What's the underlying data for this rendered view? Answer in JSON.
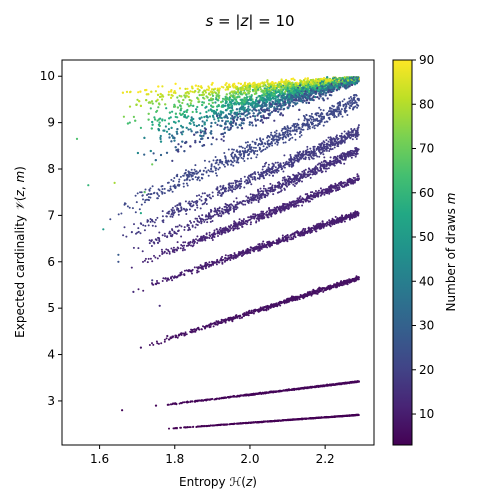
{
  "chart_data": {
    "type": "scatter",
    "title": "s = |z| = 10",
    "title_math": "$s = |z| =$ 10",
    "xlabel": "Entropy ℋ(z)",
    "ylabel": "Expected cardinality 𝒱(z, m)",
    "xlim": [
      1.5,
      2.33
    ],
    "ylim": [
      2.05,
      10.35
    ],
    "x_ticks": [
      1.6,
      1.8,
      2.0,
      2.2
    ],
    "y_ticks": [
      3,
      4,
      5,
      6,
      7,
      8,
      9,
      10
    ],
    "x_tick_labels": [
      "1.6",
      "1.8",
      "2.0",
      "2.2"
    ],
    "y_tick_labels": [
      "3",
      "4",
      "5",
      "6",
      "7",
      "8",
      "9",
      "10"
    ],
    "grid": false,
    "legend": "none",
    "colorbar": {
      "label": "Number of draws m",
      "colormap": "viridis",
      "range": [
        3,
        90
      ],
      "ticks": [
        10,
        20,
        30,
        40,
        50,
        60,
        70,
        80,
        90
      ],
      "tick_labels": [
        "10",
        "20",
        "30",
        "40",
        "50",
        "60",
        "70",
        "80",
        "90"
      ]
    },
    "bands": [
      {
        "m": 3,
        "x_range": [
          1.78,
          2.29
        ],
        "y_range": [
          2.4,
          2.7
        ]
      },
      {
        "m": 4,
        "x_range": [
          1.76,
          2.29
        ],
        "y_range": [
          2.9,
          3.42
        ]
      },
      {
        "m": 7,
        "x_range": [
          1.73,
          2.29
        ],
        "y_range": [
          4.2,
          5.65
        ]
      },
      {
        "m": 10,
        "x_range": [
          1.7,
          2.29
        ],
        "y_range": [
          5.4,
          7.05
        ]
      },
      {
        "m": 12,
        "x_range": [
          1.68,
          2.29
        ],
        "y_range": [
          5.9,
          7.8
        ]
      },
      {
        "m": 15,
        "x_range": [
          1.68,
          2.29
        ],
        "y_range": [
          6.2,
          8.4
        ]
      },
      {
        "m": 18,
        "x_range": [
          1.66,
          2.29
        ],
        "y_range": [
          6.6,
          8.8
        ]
      },
      {
        "m": 22,
        "x_range": [
          1.62,
          2.29
        ],
        "y_range": [
          7.0,
          9.5
        ]
      }
    ]
  }
}
